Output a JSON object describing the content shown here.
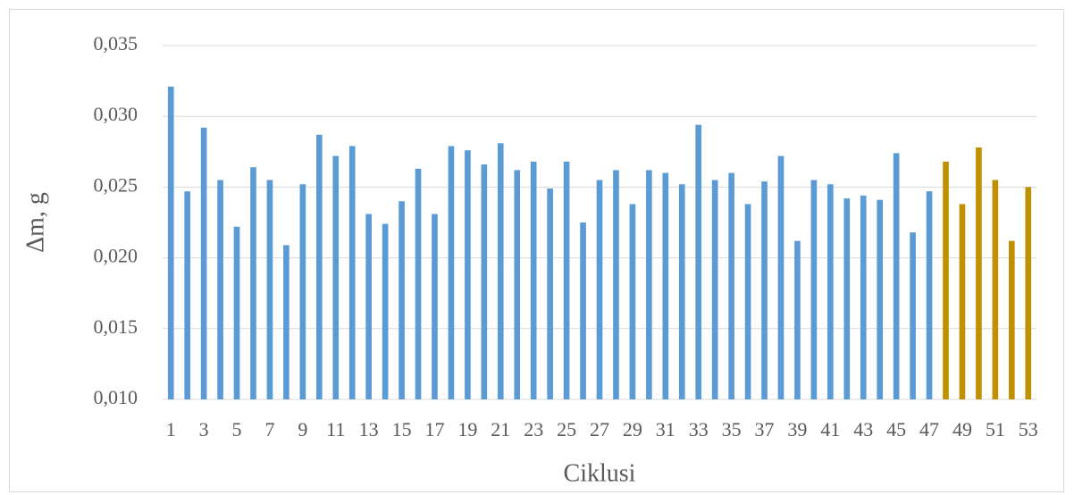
{
  "chart_data": {
    "type": "bar",
    "x_label": "Ciklusi",
    "y_label": "Δm, g",
    "categories": [
      "1",
      null,
      "3",
      null,
      "5",
      null,
      "7",
      null,
      "9",
      null,
      "11",
      null,
      "13",
      null,
      "15",
      null,
      "17",
      null,
      "19",
      null,
      "21",
      null,
      "23",
      null,
      "25",
      null,
      "27",
      null,
      "29",
      null,
      "31",
      null,
      "33",
      null,
      "35",
      null,
      "37",
      null,
      "39",
      null,
      "41",
      null,
      "43",
      null,
      "45",
      null,
      "47",
      null,
      "49",
      null,
      "51",
      null,
      "53"
    ],
    "values": [
      0.0321,
      0.0247,
      0.0292,
      0.0255,
      0.0222,
      0.0264,
      0.0255,
      0.0209,
      0.0252,
      0.0287,
      0.0272,
      0.0279,
      0.0231,
      0.0224,
      0.024,
      0.0263,
      0.0231,
      0.0279,
      0.0276,
      0.0266,
      0.0281,
      0.0262,
      0.0268,
      0.0249,
      0.0268,
      0.0225,
      0.0255,
      0.0262,
      0.0238,
      0.0262,
      0.026,
      0.0252,
      0.0294,
      0.0255,
      0.026,
      0.0238,
      0.0254,
      0.0272,
      0.0212,
      0.0255,
      0.0252,
      0.0242,
      0.0244,
      0.0241,
      0.0274,
      0.0218,
      0.0247,
      0.0268,
      0.0238,
      0.0278,
      0.0255,
      0.0212,
      0.025
    ],
    "colors": [
      "#5b9bd5",
      "#5b9bd5",
      "#5b9bd5",
      "#5b9bd5",
      "#5b9bd5",
      "#5b9bd5",
      "#5b9bd5",
      "#5b9bd5",
      "#5b9bd5",
      "#5b9bd5",
      "#5b9bd5",
      "#5b9bd5",
      "#5b9bd5",
      "#5b9bd5",
      "#5b9bd5",
      "#5b9bd5",
      "#5b9bd5",
      "#5b9bd5",
      "#5b9bd5",
      "#5b9bd5",
      "#5b9bd5",
      "#5b9bd5",
      "#5b9bd5",
      "#5b9bd5",
      "#5b9bd5",
      "#5b9bd5",
      "#5b9bd5",
      "#5b9bd5",
      "#5b9bd5",
      "#5b9bd5",
      "#5b9bd5",
      "#5b9bd5",
      "#5b9bd5",
      "#5b9bd5",
      "#5b9bd5",
      "#5b9bd5",
      "#5b9bd5",
      "#5b9bd5",
      "#5b9bd5",
      "#5b9bd5",
      "#5b9bd5",
      "#5b9bd5",
      "#5b9bd5",
      "#5b9bd5",
      "#5b9bd5",
      "#5b9bd5",
      "#5b9bd5",
      "#bf9000",
      "#bf9000",
      "#bf9000",
      "#bf9000",
      "#bf9000",
      "#bf9000"
    ],
    "ylim": [
      0.01,
      0.035
    ],
    "yticks": [
      {
        "value": 0.01,
        "label": "0,010"
      },
      {
        "value": 0.015,
        "label": "0,015"
      },
      {
        "value": 0.02,
        "label": "0,020"
      },
      {
        "value": 0.025,
        "label": "0,025"
      },
      {
        "value": 0.03,
        "label": "0,030"
      },
      {
        "value": 0.035,
        "label": "0,035"
      }
    ],
    "grid": true
  }
}
